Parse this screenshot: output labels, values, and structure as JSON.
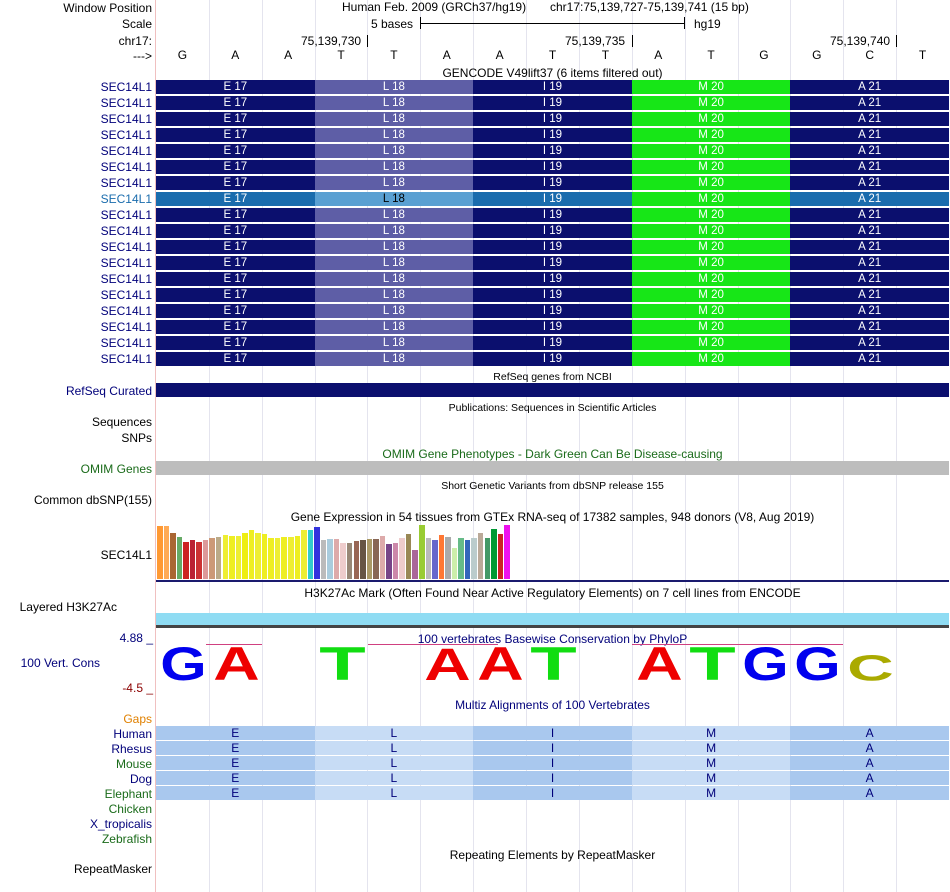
{
  "header": {
    "window_position_label": "Window Position",
    "scale_label": "Scale",
    "chrom_label": "chr17:",
    "strand_label": "--->",
    "assembly_title": "Human Feb. 2009 (GRCh37/hg19)",
    "position_title": "chr17:75,139,727-75,139,741 (15 bp)",
    "scale_text": "5 bases",
    "scale_db": "hg19",
    "ticks": [
      "75,139,730",
      "75,139,735",
      "75,139,740"
    ],
    "bases": [
      "G",
      "A",
      "A",
      "T",
      "T",
      "A",
      "A",
      "T",
      "T",
      "A",
      "T",
      "G",
      "G",
      "C",
      "T"
    ]
  },
  "gencode": {
    "title": "GENCODE V49lift37 (6 items filtered out)",
    "gene_labels": [
      "SEC14L1",
      "SEC14L1",
      "SEC14L1",
      "SEC14L1",
      "SEC14L1",
      "SEC14L1",
      "SEC14L1",
      "SEC14L1",
      "SEC14L1",
      "SEC14L1",
      "SEC14L1",
      "SEC14L1",
      "SEC14L1",
      "SEC14L1",
      "SEC14L1",
      "SEC14L1",
      "SEC14L1",
      "SEC14L1"
    ],
    "highlighted_row": 7,
    "codons": [
      "E 17",
      "L 18",
      "I 19",
      "M 20",
      "A 21"
    ],
    "colors": {
      "dark": "#0b0f6e",
      "light_L": "#5e5ea6",
      "green": "#17e617",
      "hl_dark": "#1a6cad",
      "hl_L": "#5aa0d2",
      "hl_label": "#1a6cad"
    }
  },
  "refseq": {
    "label": "RefSeq Curated",
    "title": "RefSeq genes from NCBI",
    "color": "#0b0f6e"
  },
  "publications": {
    "title": "Publications: Sequences in Scientific Articles",
    "label": "Sequences"
  },
  "snps": {
    "label": "SNPs"
  },
  "omim": {
    "label": "OMIM Genes",
    "title": "OMIM Gene Phenotypes - Dark Green Can Be Disease-causing",
    "label_color": "#1a6b1a",
    "bar_color": "#bdbdbd"
  },
  "dbsnp": {
    "label": "Common dbSNP(155)",
    "title": "Short Genetic Variants from dbSNP release 155"
  },
  "gtex": {
    "label": "SEC14L1",
    "title": "Gene Expression in 54 tissues from GTEx RNA-seq of 17382 samples, 948 donors (V8, Aug 2019)",
    "bars": [
      {
        "v": 0.98,
        "c": "#ff9933"
      },
      {
        "v": 0.98,
        "c": "#ffaa55"
      },
      {
        "v": 0.86,
        "c": "#aa6633"
      },
      {
        "v": 0.78,
        "c": "#66aa66"
      },
      {
        "v": 0.68,
        "c": "#cc2222"
      },
      {
        "v": 0.72,
        "c": "#bb2233"
      },
      {
        "v": 0.68,
        "c": "#cc3333"
      },
      {
        "v": 0.72,
        "c": "#dd9999"
      },
      {
        "v": 0.76,
        "c": "#cc9977"
      },
      {
        "v": 0.78,
        "c": "#bbaa88"
      },
      {
        "v": 0.82,
        "c": "#eeee33"
      },
      {
        "v": 0.8,
        "c": "#eeee22"
      },
      {
        "v": 0.8,
        "c": "#eeee33"
      },
      {
        "v": 0.86,
        "c": "#eeee11"
      },
      {
        "v": 0.9,
        "c": "#eeee22"
      },
      {
        "v": 0.86,
        "c": "#eeee33"
      },
      {
        "v": 0.84,
        "c": "#eeee22"
      },
      {
        "v": 0.76,
        "c": "#eeee22"
      },
      {
        "v": 0.76,
        "c": "#eeee33"
      },
      {
        "v": 0.78,
        "c": "#eeee22"
      },
      {
        "v": 0.78,
        "c": "#eeee33"
      },
      {
        "v": 0.8,
        "c": "#eeee22"
      },
      {
        "v": 0.9,
        "c": "#eeee33"
      },
      {
        "v": 0.9,
        "c": "#33cccc"
      },
      {
        "v": 0.96,
        "c": "#3333dd"
      },
      {
        "v": 0.72,
        "c": "#bbbbbb"
      },
      {
        "v": 0.74,
        "c": "#aaccdd"
      },
      {
        "v": 0.74,
        "c": "#ddaaaa"
      },
      {
        "v": 0.66,
        "c": "#eecccc"
      },
      {
        "v": 0.66,
        "c": "#998877"
      },
      {
        "v": 0.7,
        "c": "#996655"
      },
      {
        "v": 0.72,
        "c": "#665544"
      },
      {
        "v": 0.74,
        "c": "#aa9966"
      },
      {
        "v": 0.74,
        "c": "#886655"
      },
      {
        "v": 0.8,
        "c": "#ddaaaa"
      },
      {
        "v": 0.64,
        "c": "#774488"
      },
      {
        "v": 0.66,
        "c": "#cc88aa"
      },
      {
        "v": 0.76,
        "c": "#eecccc"
      },
      {
        "v": 0.84,
        "c": "#998855"
      },
      {
        "v": 0.54,
        "c": "#aa6699"
      },
      {
        "v": 1.0,
        "c": "#99cc33"
      },
      {
        "v": 0.76,
        "c": "#bbbbbb"
      },
      {
        "v": 0.72,
        "c": "#6666cc"
      },
      {
        "v": 0.82,
        "c": "#ff7733"
      },
      {
        "v": 0.78,
        "c": "#aaaaaa"
      },
      {
        "v": 0.58,
        "c": "#cceeaa"
      },
      {
        "v": 0.76,
        "c": "#66bb88"
      },
      {
        "v": 0.72,
        "c": "#3366bb"
      },
      {
        "v": 0.76,
        "c": "#bbcccc"
      },
      {
        "v": 0.86,
        "c": "#bbaa99"
      },
      {
        "v": 0.76,
        "c": "#449966"
      },
      {
        "v": 0.92,
        "c": "#009933"
      },
      {
        "v": 0.84,
        "c": "#cc2222"
      },
      {
        "v": 1.0,
        "c": "#ee11ee"
      }
    ]
  },
  "h3k27ac": {
    "label": "Layered H3K27Ac",
    "title": "H3K27Ac Mark (Often Found Near Active Regulatory Elements) on 7 cell lines from ENCODE",
    "color": "#8fdcf3"
  },
  "cons": {
    "label": "100 Vert. Cons",
    "title": "100 vertebrates Basewise Conservation by PhyloP",
    "ymax": "4.88 _",
    "ymin": "-4.5 _",
    "logo": [
      {
        "base": "G",
        "h": 1.0,
        "c": "#0000ee"
      },
      {
        "base": "A",
        "h": 1.0,
        "c": "#ee0000"
      },
      {
        "base": "A",
        "h": 0.0,
        "c": "#ee0000"
      },
      {
        "base": "T",
        "h": 1.0,
        "c": "#11dd11"
      },
      {
        "base": "T",
        "h": 0.08,
        "c": "#ee0000"
      },
      {
        "base": "A",
        "h": 0.95,
        "c": "#ee0000"
      },
      {
        "base": "A",
        "h": 1.0,
        "c": "#ee0000"
      },
      {
        "base": "T",
        "h": 1.0,
        "c": "#11dd11"
      },
      {
        "base": "T",
        "h": 0.1,
        "c": "#11dd11"
      },
      {
        "base": "A",
        "h": 1.0,
        "c": "#ee0000"
      },
      {
        "base": "T",
        "h": 1.0,
        "c": "#11dd11"
      },
      {
        "base": "G",
        "h": 1.0,
        "c": "#0000ee"
      },
      {
        "base": "G",
        "h": 1.0,
        "c": "#0000ee"
      },
      {
        "base": "C",
        "h": 0.75,
        "c": "#aaaa00"
      },
      {
        "base": "T",
        "h": 0.05,
        "c": "#11dd11"
      }
    ]
  },
  "multiz": {
    "title": "Multiz Alignments of 100 Vertebrates",
    "gaps_label": "Gaps",
    "species": [
      {
        "name": "Human",
        "color": "#00007a",
        "has_row": true
      },
      {
        "name": "Rhesus",
        "color": "#00007a",
        "has_row": true
      },
      {
        "name": "Mouse",
        "color": "#1a6b1a",
        "has_row": true
      },
      {
        "name": "Dog",
        "color": "#00007a",
        "has_row": true
      },
      {
        "name": "Elephant",
        "color": "#1a6b1a",
        "has_row": true
      },
      {
        "name": "Chicken",
        "color": "#1a6b1a",
        "has_row": false
      },
      {
        "name": "X_tropicalis",
        "color": "#00007a",
        "has_row": false
      },
      {
        "name": "Zebrafish",
        "color": "#1a6b1a",
        "has_row": false
      }
    ],
    "aa": [
      "E",
      "L",
      "I",
      "M",
      "A"
    ]
  },
  "repeatmasker": {
    "label": "RepeatMasker",
    "title": "Repeating Elements by RepeatMasker"
  }
}
